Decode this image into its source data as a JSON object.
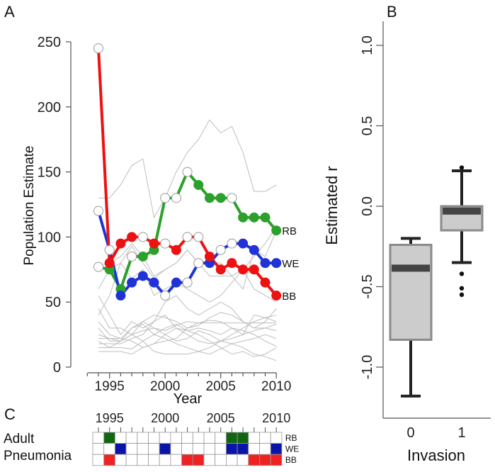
{
  "colors": {
    "RB": "#2ca02c",
    "WE": "#1f33d6",
    "BB": "#ee1111",
    "gray": "#bdbdbd",
    "open_marker": "#ffffff",
    "grid_RB": "#116611",
    "grid_WE": "#0a14a8",
    "grid_BB": "#ee2222"
  },
  "chart_data": [
    {
      "panel": "A",
      "type": "line",
      "xlabel": "Year",
      "ylabel": "Population Estimate",
      "xlim": [
        1993,
        2010
      ],
      "ylim": [
        0,
        250
      ],
      "yticks": [
        "0",
        "50",
        "100",
        "150",
        "200",
        "250"
      ],
      "ytick_values": [
        0,
        50,
        100,
        150,
        200,
        250
      ],
      "xticks": [
        "1995",
        "2000",
        "2005",
        "2010"
      ],
      "xtick_values": [
        1995,
        2000,
        2005,
        2010
      ],
      "x": [
        1994,
        1995,
        1996,
        1997,
        1998,
        1999,
        2000,
        2001,
        2002,
        2003,
        2004,
        2005,
        2006,
        2007,
        2008,
        2009,
        2010
      ],
      "series": [
        {
          "name": "RB",
          "values": [
            77,
            75,
            60,
            85,
            85,
            90,
            130,
            130,
            150,
            140,
            130,
            130,
            130,
            115,
            115,
            115,
            105
          ],
          "filled": [
            0,
            1,
            1,
            0,
            1,
            1,
            0,
            0,
            0,
            1,
            1,
            1,
            0,
            1,
            1,
            1,
            1
          ]
        },
        {
          "name": "WE",
          "values": [
            120,
            90,
            55,
            65,
            70,
            65,
            55,
            65,
            65,
            80,
            80,
            90,
            95,
            95,
            90,
            80,
            80
          ],
          "filled": [
            0,
            0,
            1,
            1,
            1,
            1,
            0,
            1,
            0,
            0,
            1,
            0,
            0,
            1,
            1,
            1,
            1
          ]
        },
        {
          "name": "BB",
          "values": [
            245,
            80,
            95,
            100,
            100,
            95,
            95,
            90,
            100,
            100,
            85,
            75,
            80,
            75,
            75,
            65,
            55
          ],
          "filled": [
            0,
            1,
            1,
            1,
            0,
            1,
            0,
            1,
            0,
            0,
            1,
            1,
            1,
            1,
            1,
            1,
            1
          ]
        }
      ],
      "background_series": [
        [
          130,
          130,
          140,
          155,
          160,
          115,
          130,
          150,
          165,
          175,
          190,
          180,
          185,
          165,
          135,
          135,
          140
        ],
        [
          78,
          80,
          85,
          95,
          85,
          70,
          75,
          80,
          90,
          80,
          70,
          70,
          70,
          60,
          90,
          85,
          105
        ],
        [
          60,
          75,
          80,
          93,
          80,
          68,
          75,
          80,
          90,
          80,
          80,
          80,
          70,
          75,
          60,
          55,
          50
        ],
        [
          40,
          55,
          80,
          68,
          75,
          55,
          60,
          65,
          60,
          55,
          50,
          55,
          65,
          75,
          85,
          95,
          108
        ],
        [
          55,
          40,
          25,
          35,
          30,
          35,
          50,
          55,
          45,
          40,
          45,
          50,
          45,
          35,
          30,
          35,
          45
        ],
        [
          45,
          30,
          30,
          25,
          35,
          40,
          38,
          35,
          30,
          32,
          38,
          42,
          40,
          35,
          30,
          30,
          28
        ],
        [
          35,
          25,
          22,
          30,
          33,
          25,
          30,
          33,
          28,
          30,
          28,
          25,
          30,
          25,
          40,
          38,
          35
        ],
        [
          20,
          15,
          20,
          25,
          28,
          30,
          25,
          20,
          22,
          28,
          25,
          20,
          25,
          30,
          35,
          38,
          40
        ],
        [
          18,
          18,
          18,
          22,
          25,
          35,
          40,
          30,
          25,
          20,
          18,
          20,
          22,
          25,
          28,
          30,
          33
        ],
        [
          15,
          15,
          15,
          14,
          20,
          25,
          22,
          18,
          15,
          12,
          10,
          14,
          18,
          20,
          22,
          25,
          22
        ],
        [
          30,
          20,
          20,
          25,
          20,
          12,
          10,
          10,
          10,
          12,
          15,
          20,
          18,
          15,
          10,
          8,
          5
        ],
        [
          25,
          22,
          20,
          30,
          35,
          30,
          28,
          32,
          35,
          34,
          34,
          34,
          34,
          34,
          34,
          34,
          34
        ],
        [
          22,
          22,
          22,
          20,
          15,
          18,
          25,
          30,
          28,
          25,
          20,
          15,
          10,
          12,
          8,
          10,
          15
        ],
        [
          12,
          12,
          12,
          10,
          15,
          18,
          20,
          22,
          30,
          34,
          36,
          35,
          30,
          28,
          25,
          20,
          16
        ]
      ]
    },
    {
      "panel": "B",
      "type": "box",
      "xlabel": "Invasion",
      "ylabel": "Estimated r",
      "ylim": [
        -1.3,
        1.2
      ],
      "yticks": [
        "-1.0",
        "-0.5",
        "0.0",
        "0.5",
        "1.0"
      ],
      "ytick_values": [
        -1.0,
        -0.5,
        0.0,
        0.5,
        1.0
      ],
      "categories": [
        "0",
        "1"
      ],
      "boxes": [
        {
          "category": "0",
          "whisker_low": -1.18,
          "q1": -0.83,
          "median": -0.385,
          "q3": -0.24,
          "whisker_high": -0.2,
          "outliers": []
        },
        {
          "category": "1",
          "whisker_low": -0.35,
          "q1": -0.15,
          "median": -0.03,
          "q3": 0.0,
          "whisker_high": 0.22,
          "outliers": [
            0.24,
            -0.42,
            -0.51,
            -0.55
          ]
        }
      ]
    },
    {
      "panel": "C",
      "type": "heatmap",
      "title_lines": [
        "Adult",
        "Pneumonia"
      ],
      "years": [
        1994,
        1995,
        1996,
        1997,
        1998,
        1999,
        2000,
        2001,
        2002,
        2003,
        2004,
        2005,
        2006,
        2007,
        2008,
        2009,
        2010
      ],
      "xticks": [
        "1995",
        "2000",
        "2005",
        "2010"
      ],
      "xtick_values": [
        1995,
        2000,
        2005,
        2010
      ],
      "rows": [
        {
          "name": "RB",
          "values": [
            0,
            1,
            0,
            0,
            0,
            0,
            0,
            0,
            0,
            0,
            0,
            0,
            1,
            1,
            0,
            0,
            0
          ]
        },
        {
          "name": "WE",
          "values": [
            0,
            0,
            1,
            0,
            0,
            0,
            1,
            0,
            0,
            0,
            0,
            0,
            1,
            1,
            0,
            0,
            1
          ]
        },
        {
          "name": "BB",
          "values": [
            0,
            1,
            0,
            0,
            0,
            0,
            0,
            0,
            1,
            1,
            0,
            0,
            0,
            0,
            1,
            1,
            1
          ]
        }
      ]
    }
  ],
  "panel_labels": {
    "a": "A",
    "b": "B",
    "c": "C"
  }
}
